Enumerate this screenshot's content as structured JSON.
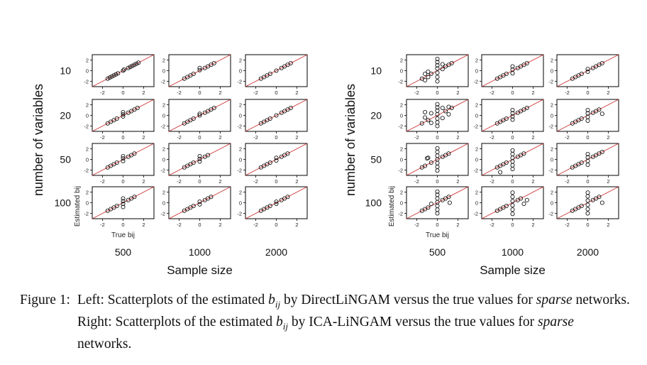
{
  "figure": {
    "axis_group_label_y": "number of variables",
    "axis_group_label_x": "Sample size",
    "row_labels": [
      "10",
      "20",
      "50",
      "100"
    ],
    "col_labels": [
      "500",
      "1000",
      "2000"
    ],
    "panel_xlabel": "True bij",
    "panel_ylabel": "Estimated bij",
    "tick_labels": [
      "-2",
      "0",
      "2"
    ],
    "line_color": "#cc3333",
    "marker_color": "#000000"
  },
  "caption": {
    "label": "Figure 1:",
    "part1": "Left: Scatterplots of the estimated",
    "bij": "b",
    "sub": "ij",
    "part2": "by DirectLiNGAM versus the true values for",
    "sparse1": "sparse",
    "part3": "networks. Right: Scatterplots of the estimated",
    "bij2": "b",
    "sub2": "ij",
    "part4": "by ICA-LiNGAM versus the true values",
    "part5": "for",
    "sparse2": "sparse",
    "part6": "networks."
  },
  "chart_data": [
    {
      "type": "scatter",
      "title": "",
      "xlabel": "Sample size",
      "ylabel": "number of variables",
      "panel_xlabel": "True bij",
      "panel_ylabel": "Estimated bij",
      "xlim": [
        -3,
        3
      ],
      "ylim": [
        -3,
        3
      ],
      "reference_line": "y = x",
      "row_categories": [
        "10",
        "20",
        "50",
        "100"
      ],
      "col_categories": [
        "500",
        "1000",
        "2000"
      ],
      "note": "Estimates lie close to the diagonal in all panels",
      "panels": [
        {
          "row": "10",
          "col": "500",
          "x": [
            -1.5,
            -1.3,
            -1.1,
            -0.9,
            -0.7,
            -0.5,
            0.0,
            0.1,
            0.5,
            0.7,
            0.9,
            1.1,
            1.3,
            1.5
          ],
          "y": [
            -1.5,
            -1.3,
            -1.1,
            -0.9,
            -0.7,
            -0.5,
            0.0,
            0.2,
            0.5,
            0.7,
            0.9,
            1.1,
            1.3,
            1.5
          ]
        },
        {
          "row": "10",
          "col": "1000",
          "x": [
            -1.5,
            -1.2,
            -0.9,
            -0.6,
            0.0,
            0.0,
            0.5,
            0.8,
            1.1,
            1.4
          ],
          "y": [
            -1.5,
            -1.2,
            -0.9,
            -0.6,
            0.1,
            0.5,
            0.5,
            0.8,
            1.1,
            1.4
          ]
        },
        {
          "row": "10",
          "col": "2000",
          "x": [
            -1.5,
            -1.2,
            -0.9,
            -0.6,
            0.0,
            0.5,
            0.8,
            1.1,
            1.4
          ],
          "y": [
            -1.5,
            -1.2,
            -0.9,
            -0.6,
            0.0,
            0.5,
            0.8,
            1.1,
            1.4
          ]
        },
        {
          "row": "20",
          "col": "500",
          "x": [
            -1.5,
            -1.2,
            -0.9,
            -0.6,
            0.0,
            0.0,
            0.0,
            0.5,
            0.8,
            1.1,
            1.4
          ],
          "y": [
            -1.5,
            -1.2,
            -0.9,
            -0.6,
            -0.2,
            0.2,
            0.6,
            0.5,
            0.8,
            1.1,
            1.4
          ]
        },
        {
          "row": "20",
          "col": "1000",
          "x": [
            -1.5,
            -1.2,
            -0.9,
            -0.6,
            0.0,
            0.0,
            0.5,
            0.8,
            1.1,
            1.4
          ],
          "y": [
            -1.5,
            -1.2,
            -0.9,
            -0.6,
            0.0,
            0.3,
            0.5,
            0.8,
            1.1,
            1.4
          ]
        },
        {
          "row": "20",
          "col": "2000",
          "x": [
            -1.5,
            -1.2,
            -0.9,
            -0.6,
            0.0,
            0.5,
            0.8,
            1.1,
            1.4
          ],
          "y": [
            -1.5,
            -1.2,
            -0.9,
            -0.6,
            0.0,
            0.5,
            0.8,
            1.1,
            1.4
          ]
        },
        {
          "row": "50",
          "col": "500",
          "x": [
            -1.5,
            -1.2,
            -0.9,
            -0.6,
            0.0,
            0.0,
            0.0,
            0.5,
            0.8,
            1.1
          ],
          "y": [
            -1.5,
            -1.2,
            -0.9,
            -0.6,
            -0.3,
            0.2,
            0.6,
            0.5,
            0.8,
            1.1
          ]
        },
        {
          "row": "50",
          "col": "1000",
          "x": [
            -1.5,
            -1.2,
            -0.9,
            -0.6,
            0.0,
            0.0,
            0.0,
            0.5,
            0.8
          ],
          "y": [
            -1.5,
            -1.2,
            -0.9,
            -0.6,
            -0.4,
            0.1,
            0.6,
            0.5,
            0.8
          ]
        },
        {
          "row": "50",
          "col": "2000",
          "x": [
            -1.5,
            -1.2,
            -0.9,
            -0.6,
            0.0,
            0.0,
            0.5,
            0.8,
            1.1
          ],
          "y": [
            -1.5,
            -1.2,
            -0.9,
            -0.6,
            -0.2,
            0.3,
            0.5,
            0.8,
            1.1
          ]
        },
        {
          "row": "100",
          "col": "500",
          "x": [
            -1.5,
            -1.2,
            -0.9,
            -0.6,
            0.0,
            0.0,
            0.0,
            0.0,
            0.5,
            0.8,
            1.1
          ],
          "y": [
            -1.5,
            -1.2,
            -0.9,
            -0.6,
            -0.8,
            -0.2,
            0.3,
            0.8,
            0.5,
            0.8,
            1.1
          ]
        },
        {
          "row": "100",
          "col": "1000",
          "x": [
            -1.5,
            -1.2,
            -0.9,
            -0.6,
            0.0,
            0.0,
            0.5,
            0.8,
            1.1
          ],
          "y": [
            -1.5,
            -1.2,
            -0.9,
            -0.6,
            -0.3,
            0.2,
            0.5,
            0.8,
            1.1
          ]
        },
        {
          "row": "100",
          "col": "2000",
          "x": [
            -1.5,
            -1.2,
            -0.9,
            -0.6,
            0.0,
            0.0,
            0.5,
            0.8,
            1.1
          ],
          "y": [
            -1.5,
            -1.2,
            -0.9,
            -0.6,
            -0.2,
            0.2,
            0.5,
            0.8,
            1.1
          ]
        }
      ]
    },
    {
      "type": "scatter",
      "title": "",
      "xlabel": "Sample size",
      "ylabel": "number of variables",
      "panel_xlabel": "True bij",
      "panel_ylabel": "Estimated bij",
      "xlim": [
        -3,
        3
      ],
      "ylim": [
        -3,
        3
      ],
      "reference_line": "y = x",
      "row_categories": [
        "10",
        "20",
        "50",
        "100"
      ],
      "col_categories": [
        "500",
        "1000",
        "2000"
      ],
      "note": "Estimates show large vertical spread at true value 0, especially at n = 500",
      "panels": [
        {
          "row": "10",
          "col": "500",
          "x": [
            -1.5,
            -1.2,
            -1.2,
            -0.9,
            -0.9,
            -0.6,
            0.0,
            0.0,
            0.0,
            0.0,
            0.0,
            0.0,
            0.0,
            0.5,
            0.5,
            0.8,
            1.1,
            1.4
          ],
          "y": [
            -1.5,
            -0.6,
            -1.8,
            -0.2,
            -1.2,
            -0.6,
            -2.0,
            -1.2,
            -0.4,
            0.4,
            1.0,
            1.6,
            2.2,
            0.3,
            1.2,
            0.8,
            1.1,
            1.4
          ]
        },
        {
          "row": "10",
          "col": "1000",
          "x": [
            -1.5,
            -1.2,
            -0.9,
            -0.6,
            0.0,
            0.0,
            0.0,
            0.5,
            0.8,
            1.1,
            1.4
          ],
          "y": [
            -1.5,
            -1.2,
            -0.9,
            -0.6,
            -0.5,
            0.2,
            0.8,
            0.5,
            0.8,
            1.1,
            1.4
          ]
        },
        {
          "row": "10",
          "col": "2000",
          "x": [
            -1.5,
            -1.2,
            -0.9,
            -0.6,
            0.0,
            0.0,
            0.5,
            0.8,
            1.1,
            1.4
          ],
          "y": [
            -1.5,
            -1.2,
            -0.9,
            -0.6,
            -0.2,
            0.3,
            0.5,
            0.8,
            1.1,
            1.4
          ]
        },
        {
          "row": "20",
          "col": "500",
          "x": [
            -1.5,
            -1.2,
            -1.2,
            -0.9,
            -0.6,
            -0.6,
            0.0,
            0.0,
            0.0,
            0.0,
            0.0,
            0.0,
            0.0,
            0.5,
            0.5,
            0.8,
            1.1,
            1.4,
            1.1
          ],
          "y": [
            -1.5,
            -0.4,
            0.6,
            -0.9,
            0.4,
            -1.4,
            -2.0,
            -1.3,
            -0.6,
            0.2,
            0.9,
            1.5,
            2.1,
            1.4,
            -0.5,
            0.8,
            1.6,
            1.4,
            0.2
          ]
        },
        {
          "row": "20",
          "col": "1000",
          "x": [
            -1.5,
            -1.2,
            -0.9,
            -0.6,
            0.0,
            0.0,
            0.0,
            0.0,
            0.5,
            0.8,
            1.1,
            1.4
          ],
          "y": [
            -1.5,
            -1.2,
            -0.9,
            -0.6,
            -0.8,
            -0.2,
            0.4,
            1.0,
            0.5,
            0.8,
            1.1,
            1.4
          ]
        },
        {
          "row": "20",
          "col": "2000",
          "x": [
            -1.5,
            -1.2,
            -0.9,
            -0.6,
            0.0,
            0.0,
            0.0,
            0.0,
            0.5,
            0.8,
            1.1,
            1.4
          ],
          "y": [
            -1.5,
            -1.2,
            -0.9,
            -0.6,
            -1.0,
            -0.3,
            0.4,
            1.0,
            0.5,
            0.8,
            1.1,
            0.3
          ]
        },
        {
          "row": "50",
          "col": "500",
          "x": [
            -1.5,
            -1.2,
            -0.9,
            -0.6,
            0.0,
            0.0,
            0.0,
            0.0,
            0.0,
            0.0,
            0.0,
            0.5,
            0.8,
            1.1,
            -1.0
          ],
          "y": [
            -1.5,
            -1.2,
            0.3,
            -0.6,
            -2.1,
            -1.4,
            -0.7,
            0.0,
            0.7,
            1.4,
            2.1,
            0.5,
            0.8,
            1.1,
            0.2
          ]
        },
        {
          "row": "50",
          "col": "1000",
          "x": [
            -1.5,
            -1.2,
            -0.9,
            -0.6,
            0.0,
            0.0,
            0.0,
            0.0,
            0.0,
            0.0,
            0.5,
            0.8,
            1.1,
            -1.2
          ],
          "y": [
            -1.5,
            -1.2,
            -0.9,
            -0.6,
            -1.8,
            -1.1,
            -0.4,
            0.3,
            1.0,
            1.7,
            0.5,
            0.8,
            1.1,
            -2.4
          ]
        },
        {
          "row": "50",
          "col": "2000",
          "x": [
            -1.5,
            -1.2,
            -0.9,
            -0.6,
            0.0,
            0.0,
            0.0,
            0.0,
            0.5,
            0.8,
            1.1,
            1.4
          ],
          "y": [
            -1.5,
            -1.2,
            -0.9,
            -0.6,
            -1.0,
            -0.3,
            0.4,
            1.0,
            0.5,
            0.8,
            1.1,
            1.4
          ]
        },
        {
          "row": "100",
          "col": "500",
          "x": [
            -1.5,
            -1.2,
            -0.9,
            -0.6,
            0.0,
            0.0,
            0.0,
            0.0,
            0.0,
            0.0,
            0.0,
            0.5,
            0.8,
            1.1,
            1.2
          ],
          "y": [
            -1.5,
            -1.2,
            -0.9,
            -0.2,
            -2.0,
            -1.3,
            -0.6,
            0.1,
            0.8,
            1.5,
            2.1,
            0.5,
            0.8,
            1.1,
            0.0
          ]
        },
        {
          "row": "100",
          "col": "1000",
          "x": [
            -1.5,
            -1.2,
            -0.9,
            -0.6,
            0.0,
            0.0,
            0.0,
            0.0,
            0.0,
            0.0,
            0.5,
            0.8,
            1.1,
            1.4
          ],
          "y": [
            -1.5,
            -1.2,
            -0.9,
            -0.6,
            -2.1,
            -1.3,
            -0.5,
            0.3,
            1.1,
            1.9,
            0.5,
            0.8,
            -0.2,
            0.5
          ]
        },
        {
          "row": "100",
          "col": "2000",
          "x": [
            -1.5,
            -1.2,
            -0.9,
            -0.6,
            0.0,
            0.0,
            0.0,
            0.0,
            0.0,
            0.0,
            0.5,
            0.8,
            1.1,
            1.4
          ],
          "y": [
            -1.5,
            -1.2,
            -0.9,
            -0.6,
            -2.0,
            -1.2,
            -0.4,
            0.4,
            1.2,
            1.9,
            0.5,
            0.8,
            1.1,
            0.0
          ]
        }
      ]
    }
  ]
}
